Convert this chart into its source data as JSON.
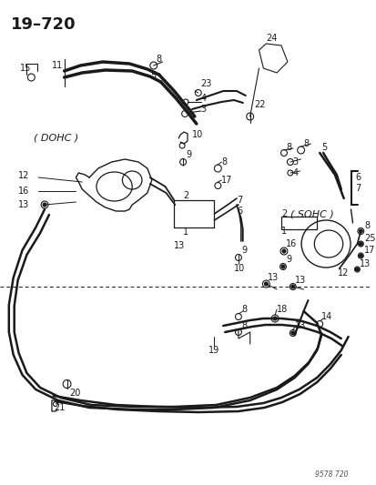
{
  "title": "19-720",
  "watermark": "9578 720",
  "bg_color": "#ffffff",
  "fg_color": "#1a1a1a",
  "fig_width": 4.14,
  "fig_height": 5.33,
  "dpi": 100
}
